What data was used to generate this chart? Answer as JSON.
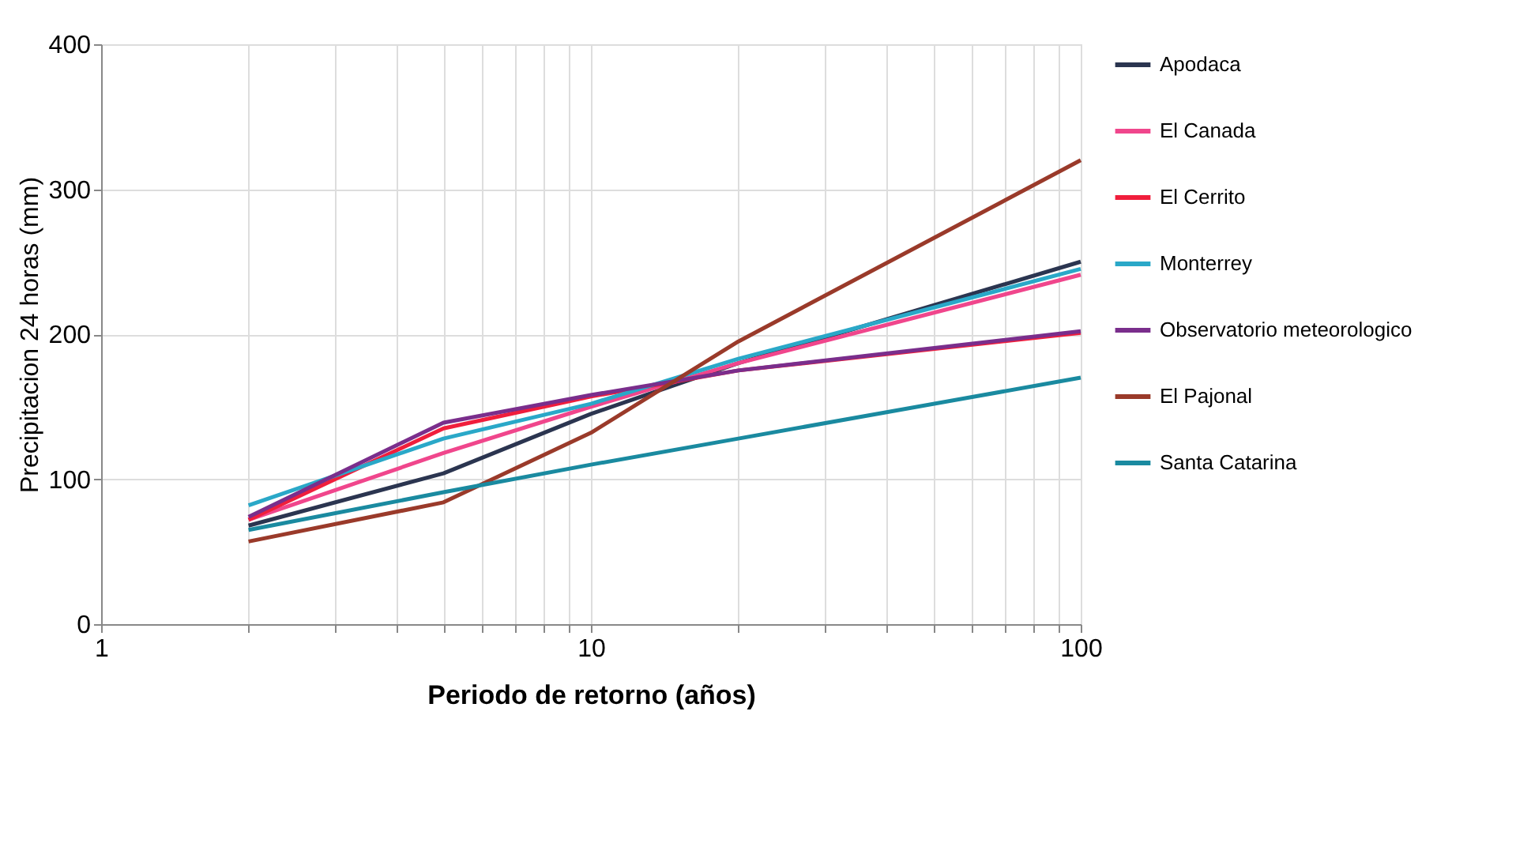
{
  "chart_data": {
    "type": "line",
    "xlabel": "Periodo de retorno (años)",
    "ylabel": "Precipitacion 24 horas (mm)",
    "x": [
      2,
      5,
      10,
      20,
      100
    ],
    "series": [
      {
        "name": "Apodaca",
        "color": "#2b3550",
        "values": [
          68,
          104,
          145,
          180,
          250
        ]
      },
      {
        "name": "El Canada",
        "color": "#f0468c",
        "values": [
          72,
          118,
          150,
          180,
          241
        ]
      },
      {
        "name": "El Cerrito",
        "color": "#f01e3c",
        "values": [
          72,
          135,
          157,
          175,
          201
        ]
      },
      {
        "name": "Monterrey",
        "color": "#2aa8c8",
        "values": [
          82,
          128,
          152,
          183,
          245
        ]
      },
      {
        "name": "Observatorio meteorologico",
        "color": "#7a2e8c",
        "values": [
          74,
          139,
          158,
          175,
          202
        ]
      },
      {
        "name": "El Pajonal",
        "color": "#9a3a2a",
        "values": [
          57,
          84,
          132,
          195,
          320
        ]
      },
      {
        "name": "Santa Catarina",
        "color": "#1a8aa0",
        "values": [
          65,
          91,
          110,
          128,
          170
        ]
      }
    ],
    "log": "x",
    "xlim": [
      1,
      100
    ],
    "ylim": [
      0,
      400
    ],
    "xticks": [
      1,
      {
        "value": 2,
        "label": null
      },
      {
        "value": 3,
        "label": null
      },
      {
        "value": 4,
        "label": null
      },
      {
        "value": 5,
        "label": null
      },
      {
        "value": 6,
        "label": null
      },
      {
        "value": 7,
        "label": null
      },
      {
        "value": 8,
        "label": null
      },
      {
        "value": 9,
        "label": null
      },
      10,
      {
        "value": 20,
        "label": null
      },
      {
        "value": 30,
        "label": null
      },
      {
        "value": 40,
        "label": null
      },
      {
        "value": 50,
        "label": null
      },
      {
        "value": 60,
        "label": null
      },
      {
        "value": 70,
        "label": null
      },
      {
        "value": 80,
        "label": null
      },
      {
        "value": 90,
        "label": null
      },
      100
    ],
    "yticks": [
      0,
      100,
      200,
      300,
      400
    ],
    "grid": true,
    "legend": "right",
    "marker": "none",
    "line_style": "solid"
  }
}
